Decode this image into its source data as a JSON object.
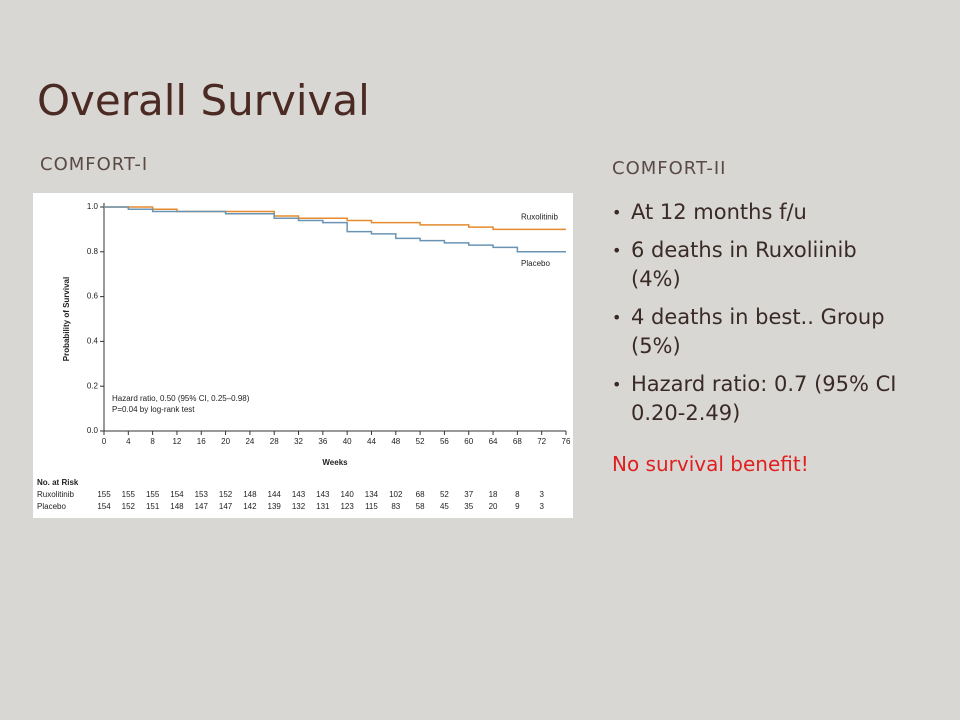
{
  "title": "Overall Survival",
  "left_heading": "COMFORT-I",
  "right_heading": "COMFORT-II",
  "bullets": [
    "At 12 months f/u",
    "6 deaths in Ruxoliinib (4%)",
    "4 deaths in best.. Group (5%)",
    "Hazard ratio: 0.7 (95% CI 0.20-2.49)"
  ],
  "conclusion": "No survival benefit!",
  "chart_data": {
    "type": "line",
    "step": true,
    "x_label": "Weeks",
    "y_label": "Probability of Survival",
    "x": [
      0,
      4,
      8,
      12,
      16,
      20,
      24,
      28,
      32,
      36,
      40,
      44,
      48,
      52,
      56,
      60,
      64,
      68,
      72,
      76
    ],
    "series": [
      {
        "name": "Ruxolitinib",
        "color": "#e58a2e",
        "values": [
          1.0,
          1.0,
          0.99,
          0.98,
          0.98,
          0.98,
          0.98,
          0.96,
          0.95,
          0.95,
          0.94,
          0.93,
          0.93,
          0.92,
          0.92,
          0.91,
          0.9,
          0.9,
          0.9,
          0.9
        ]
      },
      {
        "name": "Placebo",
        "color": "#6a94b3",
        "values": [
          1.0,
          0.99,
          0.98,
          0.98,
          0.98,
          0.97,
          0.97,
          0.95,
          0.94,
          0.93,
          0.89,
          0.88,
          0.86,
          0.85,
          0.84,
          0.83,
          0.82,
          0.8,
          0.8,
          0.8
        ]
      }
    ],
    "xlim": [
      0,
      76
    ],
    "xticks": [
      0,
      4,
      8,
      12,
      16,
      20,
      24,
      28,
      32,
      36,
      40,
      44,
      48,
      52,
      56,
      60,
      64,
      68,
      72,
      76
    ],
    "ylim": [
      0,
      1
    ],
    "yticks": [
      {
        "value": 0,
        "label": "0.0"
      },
      0.2,
      0.4,
      0.6,
      0.8,
      {
        "value": 1,
        "label": "1.0"
      }
    ],
    "annotations": [
      "Hazard ratio, 0.50 (95% CI, 0.25–0.98)",
      "P=0.04 by log-rank test"
    ],
    "at_risk": {
      "title": "No. at Risk",
      "rows": [
        [
          155,
          155,
          155,
          154,
          153,
          152,
          148,
          144,
          143,
          143,
          140,
          134,
          102,
          68,
          52,
          37,
          18,
          8,
          3
        ],
        [
          154,
          152,
          151,
          148,
          147,
          147,
          142,
          139,
          132,
          131,
          123,
          115,
          83,
          58,
          45,
          35,
          20,
          9,
          3
        ]
      ]
    }
  }
}
